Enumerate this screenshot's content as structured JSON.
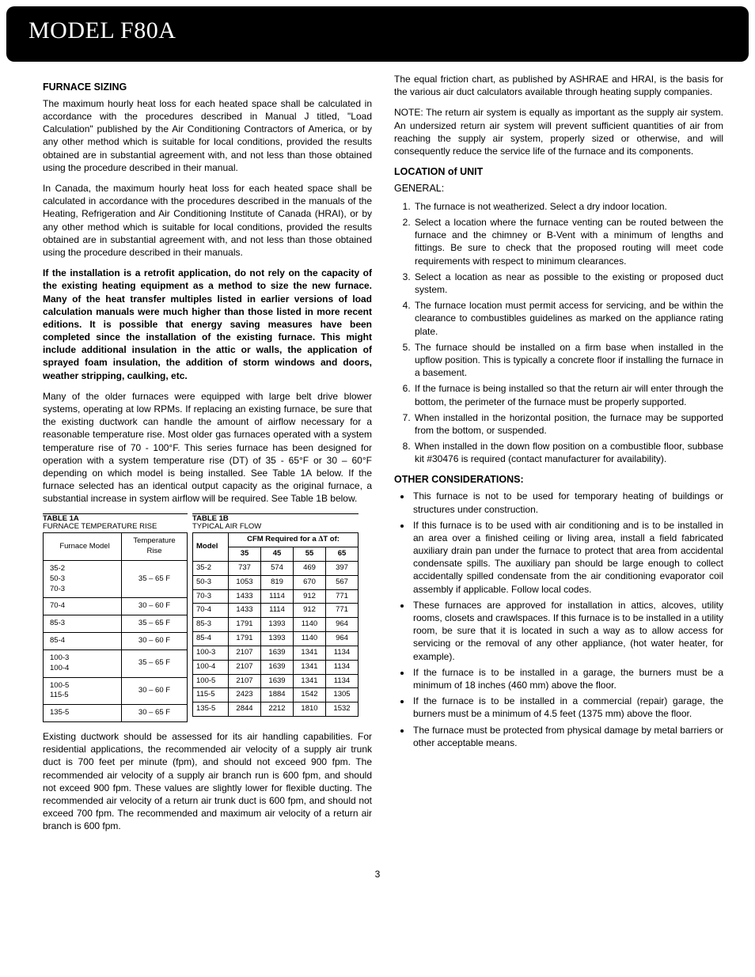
{
  "header": {
    "title": "MODEL F80A"
  },
  "left": {
    "h1": "FURNACE SIZING",
    "p1": "The maximum hourly heat loss for each heated space shall be calculated in accordance with the procedures described in Manual J titled, \"Load Calculation\" published by the Air Conditioning Contractors of America, or by any other method which is suitable for local conditions, provided the results obtained are in substantial agreement with, and not less than those obtained using the procedure described in their manual.",
    "p2": "In Canada, the maximum hourly heat loss for each heated space shall be calculated in accordance with the procedures described in the manuals of the Heating, Refrigeration and Air Conditioning Institute of Canada (HRAI), or by any other method which is suitable for local conditions, provided the results obtained are in substantial agreement with, and not less than those obtained using the procedure described in their manuals.",
    "p3": "If the installation is a retrofit application, do not rely on the capacity of the existing heating equipment as a method to size the new furnace. Many of the heat transfer multiples listed in earlier versions of load calculation manuals were much higher than those listed in more recent editions. It is possible that energy saving measures have been completed since the installation of the existing furnace. This might include additional insulation in the attic or walls, the application of sprayed foam insulation, the addition of storm windows and doors, weather stripping, caulking, etc.",
    "p4": "Many of the older furnaces were equipped with large belt drive blower systems, operating at low RPMs. If replacing an existing furnace, be sure that the existing ductwork can handle the amount of airflow necessary for a reasonable temperature rise. Most older gas furnaces operated with a system temperature rise of 70 - 100°F. This series furnace has been designed for operation with a system temperature rise (DT) of 35 - 65°F or 30 – 60°F depending on which model is being installed. See Table 1A below. If the furnace selected has an identical output capacity as the original furnace, a substantial increase in system airflow will be required. See Table 1B below.",
    "p5": "Existing ductwork should be assessed for its air handling capabilities. For residential applications, the recommended air velocity of a supply air trunk duct is 700 feet per minute (fpm), and should not exceed 900 fpm. The recommended air velocity of a supply air branch run is 600 fpm, and should not exceed 900 fpm. These values are slightly lower for flexible ducting. The recommended air velocity of a return air trunk duct is 600 fpm, and should not exceed 700 fpm. The recommended and maximum air velocity of a return air branch is 600 fpm."
  },
  "table1a": {
    "title": "TABLE 1A",
    "subtitle": "FURNACE TEMPERATURE RISE",
    "headers": [
      "Furnace Model",
      "Temperature\nRise"
    ],
    "rows": [
      {
        "models": [
          "35-2",
          "50-3",
          "70-3"
        ],
        "rise": "35 – 65 F"
      },
      {
        "models": [
          "70-4"
        ],
        "rise": "30 – 60 F"
      },
      {
        "models": [
          "85-3"
        ],
        "rise": "35 – 65 F"
      },
      {
        "models": [
          "85-4"
        ],
        "rise": "30 – 60 F"
      },
      {
        "models": [
          "100-3",
          "100-4"
        ],
        "rise": "35 – 65 F"
      },
      {
        "models": [
          "100-5",
          "115-5"
        ],
        "rise": "30 – 60 F"
      },
      {
        "models": [
          "135-5"
        ],
        "rise": "30 – 65 F"
      }
    ]
  },
  "table1b": {
    "title": "TABLE 1B",
    "subtitle": "TYPICAL AIR FLOW",
    "cfm_header_prefix": "CFM Required for a ",
    "cfm_header_suffix": "T of:",
    "model_label": "Model",
    "columns": [
      "35",
      "45",
      "55",
      "65"
    ],
    "rows": [
      [
        "35-2",
        "737",
        "574",
        "469",
        "397"
      ],
      [
        "50-3",
        "1053",
        "819",
        "670",
        "567"
      ],
      [
        "70-3",
        "1433",
        "1114",
        "912",
        "771"
      ],
      [
        "70-4",
        "1433",
        "1114",
        "912",
        "771"
      ],
      [
        "85-3",
        "1791",
        "1393",
        "1140",
        "964"
      ],
      [
        "85-4",
        "1791",
        "1393",
        "1140",
        "964"
      ],
      [
        "100-3",
        "2107",
        "1639",
        "1341",
        "1134"
      ],
      [
        "100-4",
        "2107",
        "1639",
        "1341",
        "1134"
      ],
      [
        "100-5",
        "2107",
        "1639",
        "1341",
        "1134"
      ],
      [
        "115-5",
        "2423",
        "1884",
        "1542",
        "1305"
      ],
      [
        "135-5",
        "2844",
        "2212",
        "1810",
        "1532"
      ]
    ]
  },
  "right": {
    "p1": "The equal friction chart, as published by ASHRAE and HRAI, is the basis for the various air duct calculators available through heating supply companies.",
    "p2": "NOTE: The return air system is equally as important as the supply air system. An undersized return air system will prevent sufficient quantities of air from reaching the supply air system, properly sized or otherwise, and will consequently reduce the service life of the furnace and its components.",
    "h2": "LOCATION of UNIT",
    "sub": "GENERAL:",
    "list1": [
      "The furnace is not weatherized. Select a dry indoor location.",
      "Select a location where the furnace venting can be routed between the furnace and the chimney or B-Vent with a minimum of lengths and fittings. Be sure to check that the proposed routing will meet code requirements with respect to minimum clearances.",
      "Select a location as near as possible to the existing or proposed duct system.",
      "The furnace location must permit access for servicing, and be within the clearance to combustibles guidelines as marked on the appliance rating plate.",
      "The furnace should be installed on a firm base when installed in the upflow position. This is typically a concrete floor if installing the furnace in a basement.",
      "If the furnace is being installed so that the return air will enter through the bottom, the perimeter of the furnace must be properly supported.",
      "When installed in the horizontal position, the furnace may be supported from the bottom, or suspended.",
      "When installed in the down flow position on a combustible floor, subbase kit #30476 is required (contact manufacturer for availability)."
    ],
    "h3": "OTHER CONSIDERATIONS:",
    "list2": [
      "This furnace is not to be used for temporary heating of buildings or structures under construction.",
      "If this furnace is to be used with air conditioning and is to be installed in an area over a finished ceiling or living area, install a field fabricated auxiliary drain pan under the furnace to protect that area from accidental condensate spills. The auxiliary pan should be large enough to collect accidentally spilled condensate from the air conditioning evaporator coil assembly if applicable. Follow local codes.",
      "These furnaces are approved for installation in attics, alcoves, utility rooms, closets and crawlspaces. If this furnace is to be installed in a utility room, be sure that it is located in such a way as to allow access for servicing or the removal of any other appliance, (hot water heater, for example).",
      "If the furnace is to be installed in a garage, the burners must be a minimum of 18 inches (460 mm) above the floor.",
      "If the furnace is to be installed in a commercial (repair) garage, the burners must be a minimum of 4.5 feet (1375 mm) above the floor.",
      "The furnace must be protected from physical damage by metal barriers or other acceptable means."
    ]
  },
  "page_number": "3"
}
